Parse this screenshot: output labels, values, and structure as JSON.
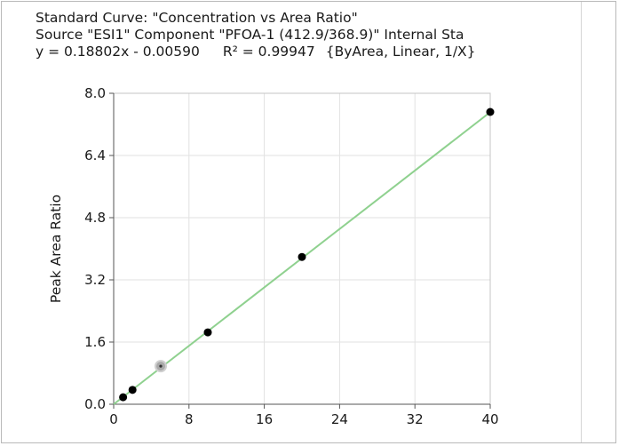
{
  "header": {
    "title": "Standard Curve: \"Concentration vs Area Ratio\"",
    "source": "Source \"ESI1\" Component \"PFOA-1 (412.9/368.9)\"  Internal Sta",
    "equation": "y = 0.18802x - 0.00590",
    "r_squared": "R² = 0.99947",
    "fit_options": "{ByArea, Linear, 1/X}"
  },
  "chart_data": {
    "type": "scatter",
    "title": "Standard Curve: \"Concentration vs Area Ratio\"",
    "xlabel": "",
    "ylabel": "Peak Area Ratio",
    "xlim": [
      0,
      40
    ],
    "ylim": [
      0,
      8.0
    ],
    "x_ticks": [
      "0",
      "8",
      "16",
      "24",
      "32",
      "40"
    ],
    "y_ticks": [
      "0.0",
      "1.6",
      "3.2",
      "4.8",
      "6.4",
      "8.0"
    ],
    "grid": true,
    "fit": {
      "slope": 0.18802,
      "intercept": -0.0059,
      "color": "#8fd18f"
    },
    "series": [
      {
        "x": [
          1,
          2,
          10,
          20,
          40
        ],
        "y": [
          0.18,
          0.37,
          1.85,
          3.79,
          7.52
        ],
        "color": "#000000"
      },
      {
        "x": [
          5
        ],
        "y": [
          0.98
        ],
        "color": "#a9a9a9"
      }
    ]
  }
}
